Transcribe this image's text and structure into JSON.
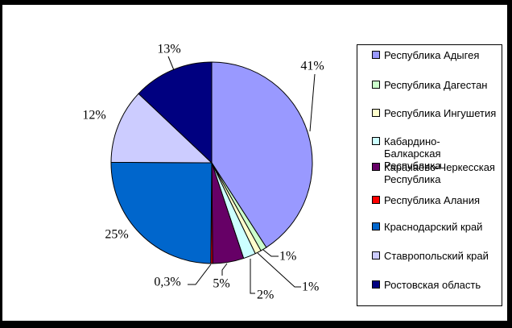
{
  "chart_data": {
    "type": "pie",
    "title": "",
    "legend_position": "right",
    "start_angle_deg": 0,
    "direction": "clockwise",
    "background": "#FFFFFF",
    "frame_color": "#000000",
    "slice_border_color": "#000000",
    "leader_line_color": "#000000",
    "label_color": "#000000",
    "legend_border_color": "#000000",
    "legend_background": "#FFFFFF",
    "categories": [
      "Республика Адыгея",
      "Республика Дагестан",
      "Республика Ингушетия",
      "Кабардино-Балкарская Республика",
      "Карачаево-Черкесская Республика",
      "Республика Алания",
      "Краснодарский край",
      "Ставропольский край",
      "Ростовская область"
    ],
    "values": [
      41,
      1,
      1,
      2,
      5,
      0.3,
      25,
      12,
      13
    ],
    "value_labels": [
      "41%",
      "1%",
      "1%",
      "2%",
      "5%",
      "0,3%",
      "25%",
      "12%",
      "13%"
    ],
    "colors": [
      "#9999FF",
      "#CCFFCC",
      "#FFFFCC",
      "#CCFFFF",
      "#660066",
      "#FF0000",
      "#0066CC",
      "#CCCCFF",
      "#000080"
    ]
  }
}
